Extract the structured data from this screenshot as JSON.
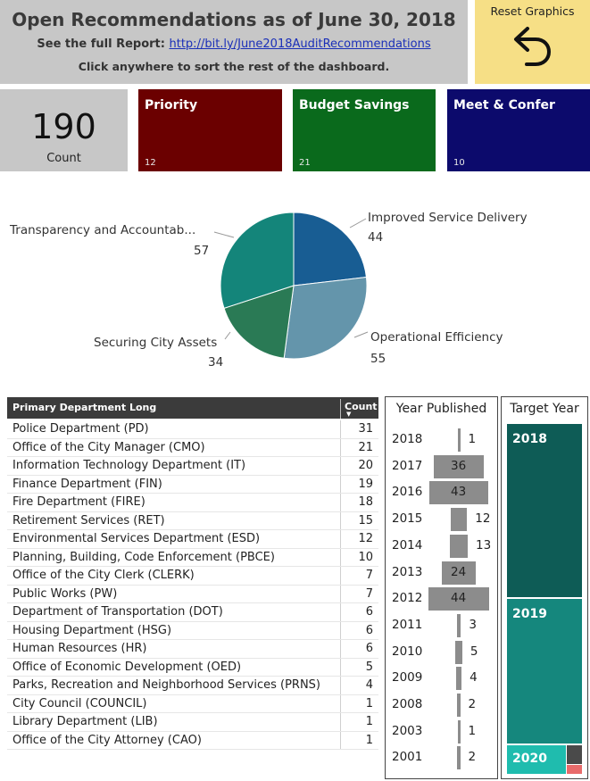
{
  "header": {
    "title": "Open Recommendations as of June 30, 2018",
    "sub_prefix": "See the full Report:",
    "link_text": "http://bit.ly/June2018AuditRecommendations",
    "note": "Click anywhere to sort the rest of the dashboard."
  },
  "reset": {
    "label": "Reset Graphics",
    "icon": "undo-arrow-icon"
  },
  "kpis": {
    "count_value": "190",
    "count_label": "Count",
    "priority": {
      "label": "Priority",
      "value": "12",
      "color": "#6b0000"
    },
    "budget": {
      "label": "Budget Savings",
      "value": "21",
      "color": "#0a6a1c"
    },
    "meet": {
      "label": "Meet & Confer",
      "value": "10",
      "color": "#0c0a6c"
    }
  },
  "pie": {
    "slices": [
      {
        "name": "Improved Service Delivery",
        "value": 44,
        "color": "#185d93"
      },
      {
        "name": "Operational Efficiency",
        "value": 55,
        "color": "#6495ab"
      },
      {
        "name": "Securing City Assets",
        "value": 34,
        "color": "#2a7a55"
      },
      {
        "name": "Transparency and Accountab...",
        "value": 57,
        "color": "#14857a"
      }
    ]
  },
  "table": {
    "header_dept": "Primary Department Long",
    "header_count": "Count",
    "rows": [
      {
        "dept": "Police Department (PD)",
        "count": "31"
      },
      {
        "dept": "Office of the City Manager (CMO)",
        "count": "21"
      },
      {
        "dept": "Information Technology Department (IT)",
        "count": "20"
      },
      {
        "dept": "Finance Department (FIN)",
        "count": "19"
      },
      {
        "dept": "Fire Department (FIRE)",
        "count": "18"
      },
      {
        "dept": "Retirement Services (RET)",
        "count": "15"
      },
      {
        "dept": "Environmental Services Department (ESD)",
        "count": "12"
      },
      {
        "dept": "Planning, Building, Code Enforcement (PBCE)",
        "count": "10"
      },
      {
        "dept": "Office of the City Clerk (CLERK)",
        "count": "7"
      },
      {
        "dept": "Public Works (PW)",
        "count": "7"
      },
      {
        "dept": "Department of Transportation (DOT)",
        "count": "6"
      },
      {
        "dept": "Housing Department (HSG)",
        "count": "6"
      },
      {
        "dept": "Human Resources (HR)",
        "count": "6"
      },
      {
        "dept": "Office of Economic Development (OED)",
        "count": "5"
      },
      {
        "dept": "Parks, Recreation and Neighborhood Services (PRNS)",
        "count": "4"
      },
      {
        "dept": "City Council (COUNCIL)",
        "count": "1"
      },
      {
        "dept": "Library Department (LIB)",
        "count": "1"
      },
      {
        "dept": "Office of the City Attorney (CAO)",
        "count": "1"
      }
    ]
  },
  "year_published": {
    "title": "Year Published",
    "rows": [
      {
        "year": "2018",
        "value": 1
      },
      {
        "year": "2017",
        "value": 36
      },
      {
        "year": "2016",
        "value": 43
      },
      {
        "year": "2015",
        "value": 12
      },
      {
        "year": "2014",
        "value": 13
      },
      {
        "year": "2013",
        "value": 24
      },
      {
        "year": "2012",
        "value": 44
      },
      {
        "year": "2011",
        "value": 3
      },
      {
        "year": "2010",
        "value": 5
      },
      {
        "year": "2009",
        "value": 4
      },
      {
        "year": "2008",
        "value": 2
      },
      {
        "year": "2003",
        "value": 1
      },
      {
        "year": "2001",
        "value": 2
      }
    ]
  },
  "target_year": {
    "title": "Target Year",
    "segments": [
      {
        "label": "2018",
        "color": "#0e5c56"
      },
      {
        "label": "2019",
        "color": "#15877d"
      },
      {
        "label": "2020",
        "color": "#1fbcae"
      }
    ],
    "mini_colors": [
      "#4a4a4a",
      "#e86a6a"
    ]
  }
}
